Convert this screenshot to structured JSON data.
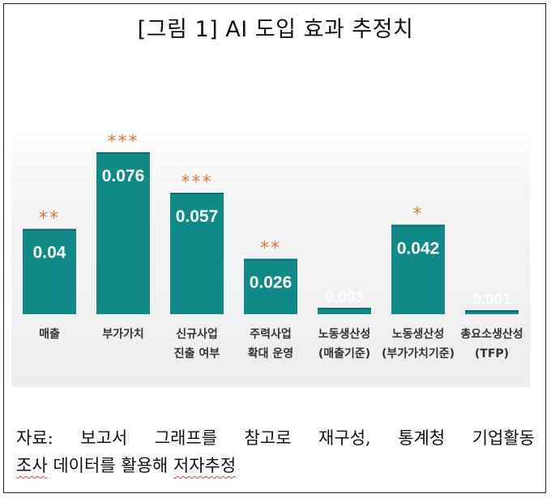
{
  "title": "[그림 1] AI 도입 효과 추정치",
  "note": {
    "line1": "자료: 보고서 그래프를 참고로 재구성, 통계청 기업활동",
    "line2_a": "조사",
    "line2_b": " 데이터를 활용해 ",
    "line2_c": "저자추정"
  },
  "colors": {
    "bar": "#0f8a86",
    "bar_dark": "#0a6e6b",
    "star": "#e07a2e",
    "value_label": "#ffffff",
    "category_label": "#333333"
  },
  "chart_data": {
    "type": "bar",
    "title": "[그림 1] AI 도입 효과 추정치",
    "xlabel": "",
    "ylabel": "",
    "ylim": [
      0,
      0.076
    ],
    "grid": false,
    "categories": [
      [
        "매출"
      ],
      [
        "부가가치"
      ],
      [
        "신규사업",
        "진출 여부"
      ],
      [
        "주력사업",
        "확대 운영"
      ],
      [
        "노동생산성",
        "(매출기준)"
      ],
      [
        "노동생산성",
        "(부가가치기준)"
      ],
      [
        "총요소생산성",
        "(TFP)"
      ]
    ],
    "values": [
      0.04,
      0.076,
      0.057,
      0.026,
      0.003,
      0.042,
      0.001
    ],
    "value_labels": [
      "0.04",
      "0.076",
      "0.057",
      "0.026",
      "0.003",
      "0.042",
      "0.001"
    ],
    "significance": [
      "**",
      "***",
      "***",
      "**",
      "",
      "*",
      ""
    ]
  }
}
